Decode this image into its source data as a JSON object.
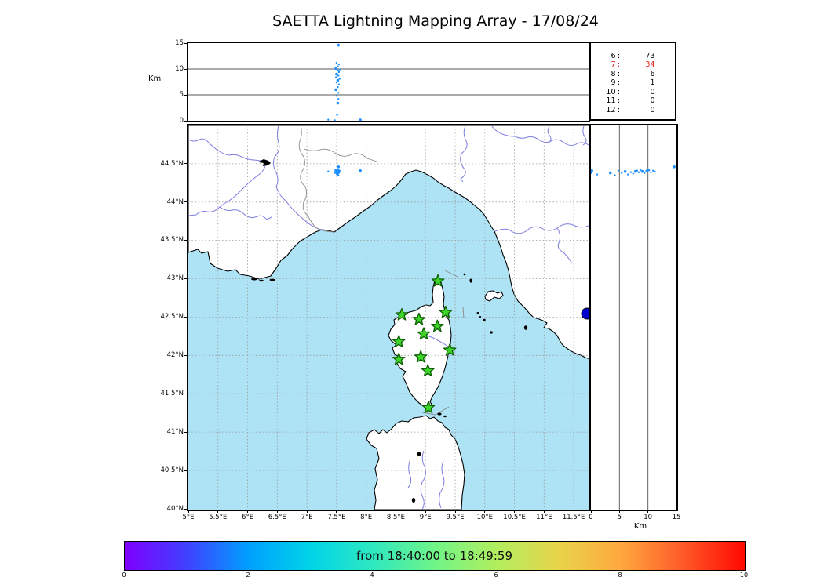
{
  "title": "SAETTA Lightning Mapping Array - 17/08/24",
  "alt_panel": {
    "axis_label": "Km",
    "ticks": [
      "0",
      "5",
      "10",
      "15"
    ]
  },
  "right_panel": {
    "axis_label": "Km",
    "ticks": [
      "0",
      "5",
      "10",
      "15"
    ]
  },
  "map_panel": {
    "lat_ticks": [
      "40°N",
      "40.5°N",
      "41°N",
      "41.5°N",
      "42°N",
      "42.5°N",
      "43°N",
      "43.5°N",
      "44°N",
      "44.5°N"
    ],
    "lon_ticks": [
      "5°E",
      "5.5°E",
      "6°E",
      "6.5°E",
      "7°E",
      "7.5°E",
      "8°E",
      "8.5°E",
      "9°E",
      "9.5°E",
      "10°E",
      "10.5°E",
      "11°E",
      "11.5°E"
    ]
  },
  "colorbar": {
    "label": "from 18:40:00 to 18:49:59",
    "ticks": [
      "0",
      "2",
      "4",
      "6",
      "8",
      "10"
    ]
  },
  "colors": {
    "sea": "#aee2f5",
    "land": "#ffffff",
    "coast": "#000000",
    "grid": "#999999",
    "river": "#7d7de0",
    "border_line": "#8a8a8a",
    "flash": "#1e90ff",
    "station_fill": "#3fd62a",
    "station_edge": "#0b5e00",
    "alert_red": "#e62222",
    "city_marker": "#0000cd"
  },
  "chart_data": {
    "type": "scatter",
    "title": "SAETTA Lightning Mapping Array - 17/08/24",
    "time_window": {
      "from": "18:40:00",
      "to": "18:49:59"
    },
    "panels": [
      "altitude_vs_longitude",
      "map_lon_lat",
      "altitude_vs_latitude"
    ],
    "map_lon_range_deg_e": [
      5,
      11.75
    ],
    "map_lat_range_deg_n": [
      40,
      45
    ],
    "altitude_range_km": [
      0,
      15
    ],
    "altitude_gridlines_km": [
      5,
      10
    ],
    "colorbar_range": [
      0,
      10
    ],
    "flashes_lon_lat_altkm": [
      [
        7.53,
        44.46,
        14.6
      ],
      [
        7.5,
        44.4,
        11.2
      ],
      [
        7.54,
        44.41,
        10.9
      ],
      [
        7.52,
        44.39,
        10.5
      ],
      [
        7.49,
        44.42,
        10.1
      ],
      [
        7.55,
        44.4,
        9.9
      ],
      [
        7.52,
        44.41,
        9.7
      ],
      [
        7.54,
        44.38,
        9.4
      ],
      [
        7.5,
        44.4,
        9.0
      ],
      [
        7.53,
        44.42,
        8.7
      ],
      [
        7.49,
        44.39,
        8.4
      ],
      [
        7.55,
        44.41,
        8.1
      ],
      [
        7.52,
        44.4,
        7.8
      ],
      [
        7.5,
        44.37,
        7.4
      ],
      [
        7.54,
        44.39,
        7.0
      ],
      [
        7.52,
        44.36,
        6.5
      ],
      [
        7.49,
        44.4,
        6.0
      ],
      [
        7.53,
        44.38,
        5.4
      ],
      [
        7.5,
        44.41,
        4.8
      ],
      [
        7.53,
        44.35,
        4.2
      ],
      [
        7.52,
        44.38,
        3.4
      ],
      [
        7.51,
        44.36,
        1.1
      ],
      [
        7.36,
        44.4,
        0.2
      ],
      [
        7.47,
        44.38,
        0.1
      ],
      [
        7.9,
        44.41,
        0.15
      ]
    ],
    "lma_stations_lon_lat": [
      [
        9.21,
        42.97
      ],
      [
        8.6,
        42.53
      ],
      [
        8.89,
        42.47
      ],
      [
        9.34,
        42.56
      ],
      [
        9.2,
        42.38
      ],
      [
        8.97,
        42.28
      ],
      [
        8.55,
        42.18
      ],
      [
        9.41,
        42.07
      ],
      [
        8.55,
        41.95
      ],
      [
        8.92,
        41.98
      ],
      [
        9.04,
        41.8
      ],
      [
        9.05,
        41.32
      ]
    ],
    "sources_per_station_count": [
      {
        "n_stations": "6",
        "count": "73",
        "alert": false
      },
      {
        "n_stations": "7",
        "count": "34",
        "alert": true
      },
      {
        "n_stations": "8",
        "count": "6",
        "alert": false
      },
      {
        "n_stations": "9",
        "count": "1",
        "alert": false
      },
      {
        "n_stations": "10",
        "count": "0",
        "alert": false
      },
      {
        "n_stations": "11",
        "count": "0",
        "alert": false
      },
      {
        "n_stations": "12",
        "count": "0",
        "alert": false
      }
    ]
  }
}
